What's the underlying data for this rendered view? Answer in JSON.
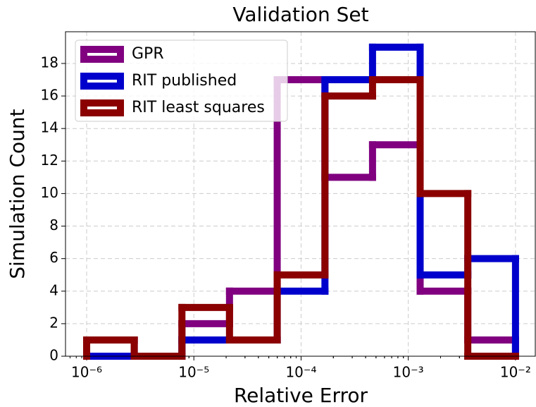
{
  "chart_data": {
    "type": "histogram",
    "title": "Validation Set",
    "x_label": "Relative Error",
    "y_label": "Simulation Count",
    "bins": [
      1e-06,
      2.78e-06,
      7.74e-06,
      2.15e-05,
      5.99e-05,
      0.000167,
      0.000464,
      0.00129,
      0.00359,
      0.01
    ],
    "series": [
      {
        "name": "GPR",
        "color": "#800080",
        "values": [
          1,
          0,
          2,
          4,
          17,
          11,
          13,
          4,
          1
        ]
      },
      {
        "name": "RIT published",
        "color": "#0000cc",
        "values": [
          0,
          0,
          1,
          1,
          4,
          17,
          19,
          5,
          6
        ]
      },
      {
        "name": "RIT least squares",
        "color": "#8b0000",
        "values": [
          1,
          0,
          3,
          1,
          5,
          16,
          17,
          10,
          0
        ]
      }
    ],
    "xscale": "log",
    "xlim": [
      6.35e-07,
      0.0153
    ],
    "xticks": [
      {
        "value": 1e-06,
        "label": "10⁻⁶"
      },
      {
        "value": 1e-05,
        "label": "10⁻⁵"
      },
      {
        "value": 0.0001,
        "label": "10⁻⁴"
      },
      {
        "value": 0.001,
        "label": "10⁻³"
      },
      {
        "value": 0.01,
        "label": "10⁻²"
      }
    ],
    "ylim": [
      0,
      19.95
    ],
    "yticks": [
      0,
      2,
      4,
      6,
      8,
      10,
      12,
      14,
      16,
      18
    ],
    "grid": true,
    "legend": "upper left"
  }
}
